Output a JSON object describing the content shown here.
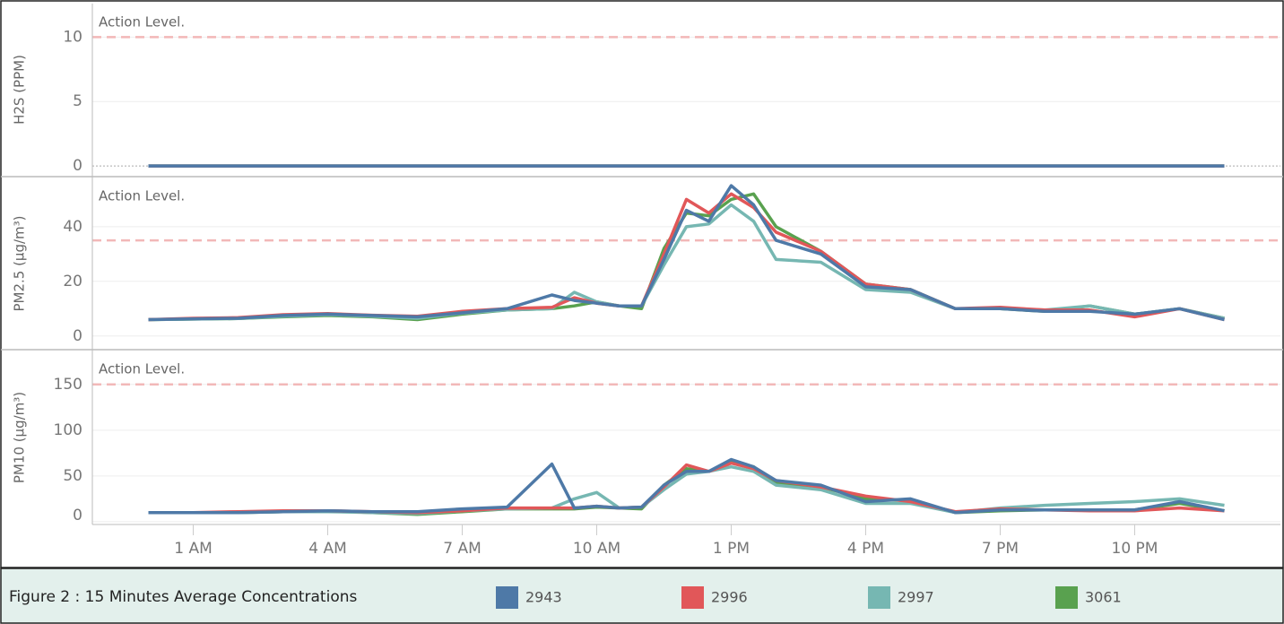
{
  "caption": "Figure 2 : 15 Minutes Average Concentrations",
  "chart_data": [
    {
      "type": "line",
      "ylabel": "H2S (PPM)",
      "x": [
        0,
        24
      ],
      "xlim": [
        -1.25,
        25.25
      ],
      "ylim": [
        -0.76,
        12.6
      ],
      "yticks": [
        0,
        5,
        10
      ],
      "grid": true,
      "annotation": {
        "text": "Action Level.",
        "value": 10
      },
      "series": [
        {
          "name": "2943",
          "color": "#4e79a7",
          "values": [
            0,
            0
          ]
        },
        {
          "name": "2996",
          "color": "#e15759",
          "values": [
            0,
            0
          ]
        },
        {
          "name": "2997",
          "color": "#76b7b2",
          "values": [
            0,
            0
          ]
        },
        {
          "name": "3061",
          "color": "#59a14f",
          "values": [
            0,
            0
          ]
        }
      ]
    },
    {
      "type": "line",
      "ylabel": "PM2.5 (µg/m³)",
      "x": [
        0,
        1,
        2,
        3,
        4,
        5,
        6,
        7,
        8,
        9,
        9.5,
        10,
        10.5,
        11,
        11.5,
        12,
        12.5,
        13,
        13.5,
        14,
        15,
        16,
        17,
        18,
        19,
        20,
        21,
        22,
        23,
        24
      ],
      "xlim": [
        -1.25,
        25.25
      ],
      "ylim": [
        -5,
        58
      ],
      "yticks": [
        0,
        20,
        40
      ],
      "grid": true,
      "annotation": {
        "text": "Action Level.",
        "value": 35
      },
      "series": [
        {
          "name": "2943",
          "color": "#4e79a7",
          "values": [
            6,
            6.3,
            6.5,
            7.5,
            8,
            7.5,
            7,
            8.5,
            10,
            15,
            13,
            12,
            11,
            11,
            28,
            46,
            42,
            55,
            48,
            35,
            30,
            18,
            17,
            10,
            10,
            9,
            9,
            8,
            10,
            6
          ]
        },
        {
          "name": "2996",
          "color": "#e15759",
          "values": [
            6,
            6.5,
            6.7,
            7.8,
            8.2,
            7.6,
            7.2,
            9,
            10,
            10.5,
            14,
            12,
            11,
            11,
            30,
            50,
            45,
            52,
            47,
            38,
            31,
            19,
            17,
            10,
            10.5,
            9.5,
            9.5,
            7,
            10,
            6
          ]
        },
        {
          "name": "2997",
          "color": "#76b7b2",
          "values": [
            6,
            6.2,
            6.4,
            7.2,
            7.8,
            7.2,
            6.5,
            8.4,
            9.5,
            10,
            16,
            12.5,
            11,
            11,
            26,
            40,
            41,
            48,
            42,
            28,
            27,
            17,
            16,
            10,
            10,
            9.5,
            11,
            8,
            10,
            6.5
          ]
        },
        {
          "name": "3061",
          "color": "#59a14f",
          "values": [
            6,
            6.2,
            6.4,
            7,
            7.5,
            7,
            6,
            8,
            9.5,
            10,
            11,
            12.5,
            11,
            10,
            32,
            45,
            44,
            50,
            52,
            40,
            31,
            19,
            17,
            10,
            10,
            9,
            11,
            8,
            10,
            6.5
          ]
        }
      ]
    },
    {
      "type": "line",
      "ylabel": "PM10 (µg/m³)",
      "x": [
        0,
        1,
        2,
        3,
        4,
        5,
        6,
        7,
        8,
        9,
        9.5,
        10,
        10.5,
        11,
        11.5,
        12,
        12.5,
        13,
        13.5,
        14,
        15,
        16,
        17,
        18,
        19,
        20,
        21,
        22,
        23,
        24
      ],
      "xlim": [
        -1.25,
        25.25
      ],
      "ylim": [
        -3,
        187
      ],
      "yticks": [
        0,
        50,
        100,
        150
      ],
      "grid": true,
      "xticks": [
        {
          "value": 1,
          "label": "1 AM"
        },
        {
          "value": 4,
          "label": "4 AM"
        },
        {
          "value": 7,
          "label": "7 AM"
        },
        {
          "value": 10,
          "label": "10 AM"
        },
        {
          "value": 13,
          "label": "1 PM"
        },
        {
          "value": 16,
          "label": "4 PM"
        },
        {
          "value": 19,
          "label": "7 PM"
        },
        {
          "value": 22,
          "label": "10 PM"
        }
      ],
      "annotation": {
        "text": "Action Level.",
        "value": 150
      },
      "series": [
        {
          "name": "2943",
          "color": "#4e79a7",
          "values": [
            10,
            10,
            10,
            11,
            12,
            11,
            11,
            14,
            16,
            63,
            15,
            17,
            15,
            16,
            40,
            55,
            55,
            68,
            60,
            45,
            40,
            22,
            25,
            10,
            13,
            13,
            13,
            13,
            22,
            12
          ]
        },
        {
          "name": "2996",
          "color": "#e15759",
          "values": [
            10,
            10,
            11,
            12,
            12,
            11,
            10,
            12,
            15,
            15,
            15,
            17,
            15,
            16,
            38,
            62,
            55,
            64,
            58,
            45,
            38,
            28,
            22,
            11,
            14,
            13,
            12,
            12,
            15,
            12
          ]
        },
        {
          "name": "2997",
          "color": "#76b7b2",
          "values": [
            10,
            10,
            10,
            11,
            11,
            10,
            9,
            12,
            14,
            15,
            25,
            32,
            15,
            16,
            35,
            52,
            55,
            60,
            55,
            40,
            35,
            20,
            20,
            10,
            15,
            18,
            20,
            22,
            25,
            18
          ]
        },
        {
          "name": "3061",
          "color": "#59a14f",
          "values": [
            10,
            10,
            10,
            11,
            12,
            10,
            8,
            11,
            14,
            14,
            14,
            16,
            15,
            14,
            40,
            58,
            55,
            66,
            60,
            42,
            38,
            25,
            23,
            10,
            12,
            13,
            13,
            13,
            20,
            12
          ]
        }
      ]
    }
  ]
}
